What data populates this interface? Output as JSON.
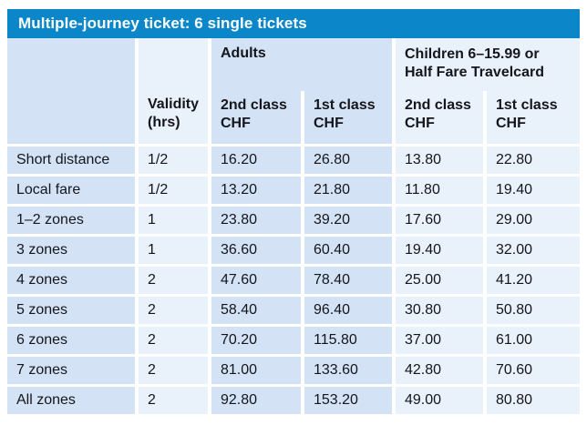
{
  "title_bar": {
    "title": "Multiple-journey ticket: 6 single tickets"
  },
  "table": {
    "group_headers": {
      "adults": "Adults",
      "children_lines": [
        "Children 6–15.99 or",
        "Half Fare Travelcard"
      ]
    },
    "column_headers": {
      "validity_lines": [
        "Validity",
        "(hrs)"
      ],
      "adult_2nd_lines": [
        "2nd class",
        "CHF"
      ],
      "adult_1st_lines": [
        "1st class",
        "CHF"
      ],
      "child_2nd_lines": [
        "2nd class",
        "CHF"
      ],
      "child_1st_lines": [
        "1st class",
        "CHF"
      ]
    },
    "rows": [
      {
        "label": "Short distance",
        "validity": "1/2",
        "adult_2nd": "16.20",
        "adult_1st": "26.80",
        "child_2nd": "13.80",
        "child_1st": "22.80"
      },
      {
        "label": "Local fare",
        "validity": "1/2",
        "adult_2nd": "13.20",
        "adult_1st": "21.80",
        "child_2nd": "11.80",
        "child_1st": "19.40"
      },
      {
        "label": "1–2 zones",
        "validity": "1",
        "adult_2nd": "23.80",
        "adult_1st": "39.20",
        "child_2nd": "17.60",
        "child_1st": "29.00"
      },
      {
        "label": "3 zones",
        "validity": "1",
        "adult_2nd": "36.60",
        "adult_1st": "60.40",
        "child_2nd": "19.40",
        "child_1st": "32.00"
      },
      {
        "label": "4 zones",
        "validity": "2",
        "adult_2nd": "47.60",
        "adult_1st": "78.40",
        "child_2nd": "25.00",
        "child_1st": "41.20"
      },
      {
        "label": "5 zones",
        "validity": "2",
        "adult_2nd": "58.40",
        "adult_1st": "96.40",
        "child_2nd": "30.80",
        "child_1st": "50.80"
      },
      {
        "label": "6 zones",
        "validity": "2",
        "adult_2nd": "70.20",
        "adult_1st": "115.80",
        "child_2nd": "37.00",
        "child_1st": "61.00"
      },
      {
        "label": "7 zones",
        "validity": "2",
        "adult_2nd": "81.00",
        "adult_1st": "133.60",
        "child_2nd": "42.80",
        "child_1st": "70.60"
      },
      {
        "label": "All zones",
        "validity": "2",
        "adult_2nd": "92.80",
        "adult_1st": "153.20",
        "child_2nd": "49.00",
        "child_1st": "80.80"
      }
    ]
  },
  "colors": {
    "title_bar_blue": "#0b86c8",
    "cell_blue_tint": "#d3e3f5",
    "cell_light_tint": "#e9f1fa",
    "text_dark": "#15151c",
    "title_text": "#ffffff"
  }
}
